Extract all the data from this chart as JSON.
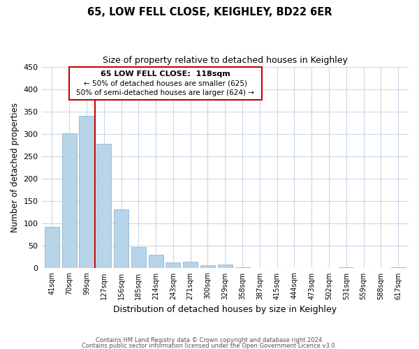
{
  "title": "65, LOW FELL CLOSE, KEIGHLEY, BD22 6ER",
  "subtitle": "Size of property relative to detached houses in Keighley",
  "xlabel": "Distribution of detached houses by size in Keighley",
  "ylabel": "Number of detached properties",
  "bar_labels": [
    "41sqm",
    "70sqm",
    "99sqm",
    "127sqm",
    "156sqm",
    "185sqm",
    "214sqm",
    "243sqm",
    "271sqm",
    "300sqm",
    "329sqm",
    "358sqm",
    "387sqm",
    "415sqm",
    "444sqm",
    "473sqm",
    "502sqm",
    "531sqm",
    "559sqm",
    "588sqm",
    "617sqm"
  ],
  "bar_values": [
    93,
    302,
    341,
    278,
    132,
    47,
    31,
    13,
    15,
    7,
    9,
    2,
    0,
    0,
    0,
    0,
    0,
    2,
    0,
    0,
    2
  ],
  "bar_color": "#b8d4e8",
  "bar_edge_color": "#9abdd6",
  "vline_x_index": 2,
  "vline_color": "#cc0000",
  "ylim": [
    0,
    450
  ],
  "yticks": [
    0,
    50,
    100,
    150,
    200,
    250,
    300,
    350,
    400,
    450
  ],
  "annotation_title": "65 LOW FELL CLOSE:  118sqm",
  "annotation_line1": "← 50% of detached houses are smaller (625)",
  "annotation_line2": "50% of semi-detached houses are larger (624) →",
  "annotation_box_color": "#ffffff",
  "annotation_box_edge": "#cc0000",
  "footnote1": "Contains HM Land Registry data © Crown copyright and database right 2024.",
  "footnote2": "Contains public sector information licensed under the Open Government Licence v3.0.",
  "background_color": "#ffffff",
  "grid_color": "#c8d8e8"
}
